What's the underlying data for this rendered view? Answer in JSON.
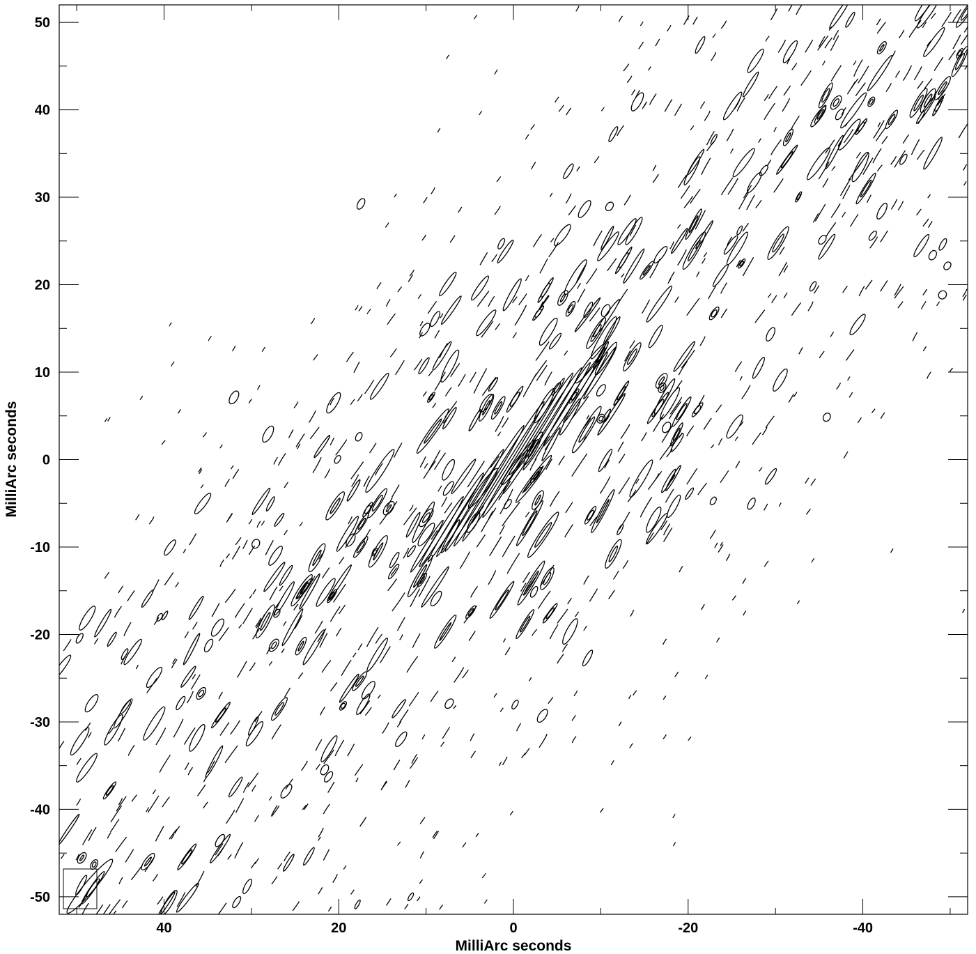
{
  "chart_data": {
    "type": "contour",
    "title": "",
    "xlabel": "MilliArc seconds",
    "ylabel": "MilliArc seconds",
    "xlim": [
      52,
      -52
    ],
    "ylim": [
      -52,
      52
    ],
    "x_ticks": [
      40,
      20,
      0,
      -20,
      -40
    ],
    "x_tick_labels": [
      "40",
      "20",
      "0",
      "-20",
      "-40"
    ],
    "y_ticks": [
      50,
      40,
      30,
      20,
      10,
      0,
      -10,
      -20,
      -30,
      -40,
      -50
    ],
    "y_tick_labels": [
      "50",
      "40",
      "30",
      "20",
      "10",
      "0",
      "-10",
      "-20",
      "-30",
      "-40",
      "-50"
    ],
    "x_minor_step": 10,
    "y_minor_step": 5,
    "grid": false,
    "beam_position": "bottom-left",
    "beam": {
      "center": [
        48.5,
        -48.8
      ],
      "major": 8,
      "minor": 1.0,
      "pa_deg": 40
    },
    "bands": [
      {
        "name": "main-sidelobe-band",
        "direction": "NW-SE",
        "angle_deg": -45,
        "half_width": 15
      },
      {
        "name": "lower-sidelobe-band",
        "direction": "NW-SE",
        "angle_deg": -42,
        "offset": -18,
        "half_width": 5
      },
      {
        "name": "upper-sidelobe-band",
        "direction": "NW-SE",
        "angle_deg": -38,
        "offset": 16,
        "half_width": 6
      }
    ],
    "peak": {
      "x": 0,
      "y": 0
    },
    "fringe_angle_deg": 58,
    "contour_color": "#000000"
  }
}
